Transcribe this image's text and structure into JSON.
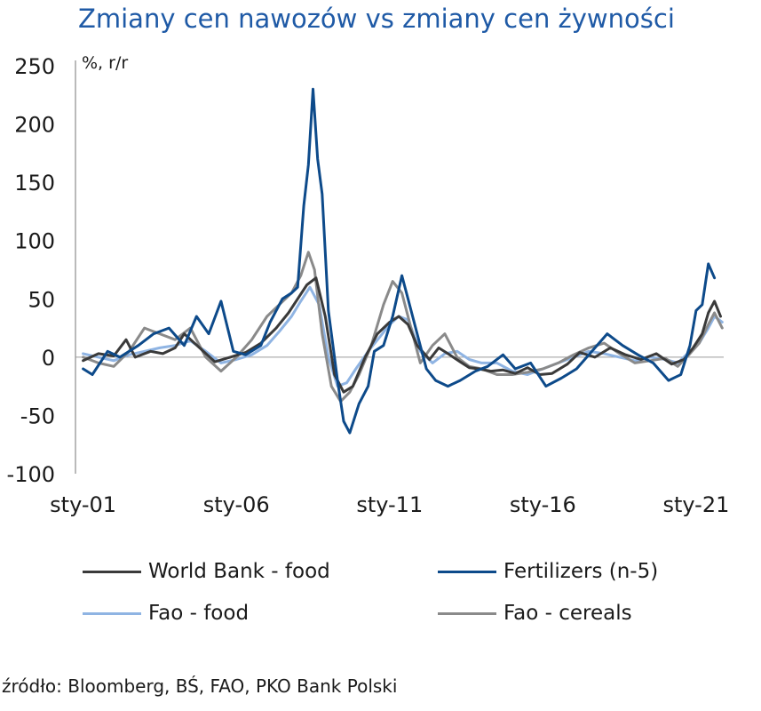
{
  "title": "Zmiany cen nawozów vs zmiany cen żywności",
  "source": "źródło: Bloomberg, BŚ, FAO, PKO Bank Polski",
  "colors": {
    "title": "#1f5aa6",
    "world_bank_food": "#3a3a3a",
    "fertilizers": "#0d4a8a",
    "fao_food": "#8fb4e3",
    "fao_cereals": "#8a8a8a"
  },
  "chart_data": {
    "type": "line",
    "ylabel": "%, r/r",
    "ylim": [
      -100,
      250
    ],
    "yticks": [
      -100,
      -50,
      0,
      50,
      100,
      150,
      200,
      250
    ],
    "xlim": [
      2000.75,
      2021.9
    ],
    "xtick_labels": [
      "sty-01",
      "sty-06",
      "sty-11",
      "sty-16",
      "sty-21"
    ],
    "xtick_years": [
      2001,
      2006,
      2011,
      2016,
      2021
    ],
    "grid": false,
    "legend_position": "bottom",
    "series": [
      {
        "name": "World Bank - food",
        "color": "#3a3a3a",
        "x": [
          2001.0,
          2001.5,
          2002.0,
          2002.4,
          2002.7,
          2003.2,
          2003.6,
          2004.0,
          2004.3,
          2004.8,
          2005.3,
          2005.8,
          2006.3,
          2006.8,
          2007.3,
          2007.7,
          2008.0,
          2008.3,
          2008.6,
          2008.9,
          2009.2,
          2009.5,
          2009.8,
          2010.2,
          2010.6,
          2011.0,
          2011.3,
          2011.6,
          2011.9,
          2012.3,
          2012.6,
          2012.9,
          2013.3,
          2013.6,
          2013.9,
          2014.3,
          2014.7,
          2015.1,
          2015.5,
          2015.9,
          2016.3,
          2016.8,
          2017.2,
          2017.7,
          2018.2,
          2018.7,
          2019.2,
          2019.7,
          2020.2,
          2020.6,
          2020.9,
          2021.2,
          2021.4,
          2021.6,
          2021.8
        ],
        "values": [
          -3,
          3,
          1,
          15,
          0,
          5,
          3,
          8,
          20,
          8,
          -4,
          0,
          4,
          12,
          25,
          38,
          50,
          62,
          68,
          35,
          -15,
          -30,
          -25,
          0,
          20,
          30,
          35,
          28,
          10,
          -2,
          8,
          3,
          -4,
          -9,
          -10,
          -12,
          -11,
          -14,
          -9,
          -15,
          -14,
          -6,
          4,
          0,
          8,
          2,
          -2,
          3,
          -6,
          -2,
          8,
          20,
          38,
          48,
          35
        ]
      },
      {
        "name": "Fertilizers (n-5)",
        "color": "#0d4a8a",
        "x": [
          2001.0,
          2001.3,
          2001.8,
          2002.2,
          2002.8,
          2003.3,
          2003.8,
          2004.3,
          2004.7,
          2005.1,
          2005.5,
          2005.9,
          2006.3,
          2006.8,
          2007.1,
          2007.5,
          2007.8,
          2008.0,
          2008.2,
          2008.35,
          2008.5,
          2008.65,
          2008.8,
          2009.0,
          2009.3,
          2009.5,
          2009.7,
          2010.0,
          2010.3,
          2010.5,
          2010.8,
          2011.1,
          2011.4,
          2011.6,
          2011.9,
          2012.2,
          2012.5,
          2012.9,
          2013.3,
          2013.8,
          2014.2,
          2014.7,
          2015.1,
          2015.6,
          2016.1,
          2016.6,
          2017.1,
          2017.6,
          2018.1,
          2018.6,
          2019.1,
          2019.6,
          2020.1,
          2020.5,
          2020.8,
          2021.0,
          2021.2,
          2021.4,
          2021.6
        ],
        "values": [
          -10,
          -15,
          5,
          0,
          10,
          20,
          25,
          10,
          35,
          20,
          48,
          5,
          2,
          10,
          30,
          50,
          55,
          60,
          130,
          165,
          230,
          170,
          140,
          40,
          -20,
          -55,
          -65,
          -40,
          -25,
          5,
          10,
          35,
          70,
          50,
          20,
          -10,
          -20,
          -25,
          -20,
          -12,
          -8,
          2,
          -10,
          -5,
          -25,
          -18,
          -10,
          5,
          20,
          10,
          2,
          -5,
          -20,
          -15,
          10,
          40,
          45,
          80,
          68
        ]
      },
      {
        "name": "Fao - food",
        "color": "#8fb4e3",
        "x": [
          2001.0,
          2001.5,
          2002.0,
          2002.5,
          2003.0,
          2003.5,
          2004.0,
          2004.5,
          2005.0,
          2005.5,
          2006.0,
          2006.5,
          2007.0,
          2007.4,
          2007.8,
          2008.1,
          2008.4,
          2008.7,
          2009.0,
          2009.3,
          2009.6,
          2009.9,
          2010.3,
          2010.7,
          2011.0,
          2011.3,
          2011.6,
          2012.0,
          2012.4,
          2012.8,
          2013.2,
          2013.6,
          2014.0,
          2014.5,
          2015.0,
          2015.5,
          2016.0,
          2016.5,
          2017.0,
          2017.5,
          2018.0,
          2018.5,
          2019.0,
          2019.5,
          2020.0,
          2020.4,
          2020.8,
          2021.1,
          2021.4,
          2021.6,
          2021.85
        ],
        "values": [
          3,
          0,
          -3,
          2,
          5,
          8,
          10,
          14,
          5,
          -5,
          -2,
          2,
          10,
          22,
          35,
          48,
          60,
          45,
          0,
          -25,
          -22,
          -10,
          5,
          18,
          28,
          35,
          32,
          5,
          -5,
          3,
          5,
          -2,
          -5,
          -5,
          -12,
          -15,
          -10,
          -5,
          0,
          5,
          3,
          0,
          -3,
          0,
          -2,
          -5,
          5,
          12,
          25,
          35,
          30
        ]
      },
      {
        "name": "Fao - cereals",
        "color": "#8a8a8a",
        "x": [
          2001.0,
          2001.5,
          2002.0,
          2002.5,
          2003.0,
          2003.5,
          2004.0,
          2004.5,
          2005.0,
          2005.5,
          2006.0,
          2006.5,
          2007.0,
          2007.4,
          2007.8,
          2008.1,
          2008.35,
          2008.55,
          2008.8,
          2009.1,
          2009.4,
          2009.7,
          2010.0,
          2010.4,
          2010.8,
          2011.1,
          2011.4,
          2011.7,
          2012.0,
          2012.4,
          2012.8,
          2013.2,
          2013.6,
          2014.0,
          2014.5,
          2015.0,
          2015.5,
          2016.0,
          2016.5,
          2017.0,
          2017.5,
          2018.0,
          2018.5,
          2019.0,
          2019.5,
          2020.0,
          2020.4,
          2020.8,
          2021.1,
          2021.4,
          2021.6,
          2021.85
        ],
        "values": [
          0,
          -5,
          -8,
          5,
          25,
          20,
          15,
          25,
          0,
          -12,
          0,
          15,
          35,
          45,
          55,
          70,
          90,
          75,
          20,
          -25,
          -38,
          -30,
          -15,
          10,
          45,
          65,
          55,
          25,
          -5,
          10,
          20,
          0,
          -8,
          -10,
          -15,
          -15,
          -13,
          -10,
          -5,
          2,
          8,
          12,
          3,
          -5,
          -3,
          -1,
          -8,
          3,
          12,
          28,
          38,
          25
        ]
      }
    ]
  }
}
